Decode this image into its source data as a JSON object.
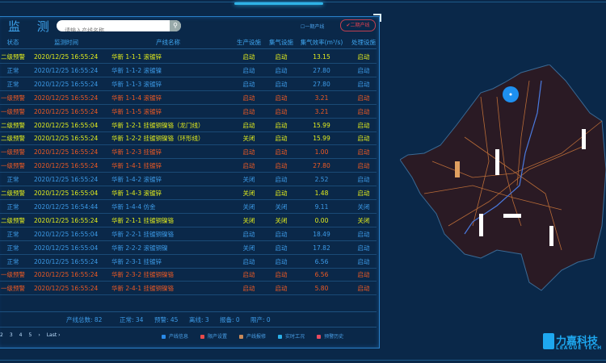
{
  "panel": {
    "title": "监 测",
    "search_placeholder": "请输入产线名称",
    "filter_phase1": "一期产线",
    "filter_phase2": "二期产线"
  },
  "table": {
    "headers": [
      "状态",
      "监测时间",
      "产线名称",
      "生产设施",
      "集气设施",
      "集气效率(m³/s)",
      "处理设施"
    ],
    "rows": [
      {
        "level": "y",
        "cells": [
          "二级预警",
          "2020/12/25 16:55:24",
          "华新 1-1-1 滚镀锌",
          "启动",
          "启动",
          "13.15",
          "启动"
        ]
      },
      {
        "level": "n",
        "cells": [
          "正常",
          "2020/12/25 16:55:24",
          "华新 1-1-2 滚镀镍",
          "启动",
          "启动",
          "27.80",
          "启动"
        ]
      },
      {
        "level": "n",
        "cells": [
          "正常",
          "2020/12/25 16:55:24",
          "华新 1-1-3 滚镀锌",
          "启动",
          "启动",
          "27.80",
          "启动"
        ]
      },
      {
        "level": "o",
        "cells": [
          "一级预警",
          "2020/12/25 16:55:24",
          "华新 1-1-4 滚镀锌",
          "启动",
          "启动",
          "3.21",
          "启动"
        ]
      },
      {
        "level": "o",
        "cells": [
          "一级预警",
          "2020/12/25 16:55:24",
          "华新 1-1-5 滚镀锌",
          "启动",
          "启动",
          "3.21",
          "启动"
        ]
      },
      {
        "level": "y",
        "cells": [
          "二级预警",
          "2020/12/25 16:55:04",
          "华新 1-2-1 挂镀铜镍铬（龙门线）",
          "启动",
          "启动",
          "15.99",
          "启动"
        ]
      },
      {
        "level": "y",
        "cells": [
          "二级预警",
          "2020/12/25 16:55:24",
          "华新 1-2-2 挂镀铜镍铬（环形线）",
          "关闭",
          "启动",
          "15.99",
          "启动"
        ]
      },
      {
        "level": "o",
        "cells": [
          "一级预警",
          "2020/12/25 16:55:24",
          "华新 1-2-3 挂镀锌",
          "启动",
          "启动",
          "1.00",
          "启动"
        ]
      },
      {
        "level": "o",
        "cells": [
          "一级预警",
          "2020/12/25 16:55:24",
          "华新 1-4-1 挂镀锌",
          "启动",
          "启动",
          "27.80",
          "启动"
        ]
      },
      {
        "level": "n",
        "cells": [
          "正常",
          "2020/12/25 16:55:24",
          "华新 1-4-2 滚镀锌",
          "关闭",
          "启动",
          "2.52",
          "启动"
        ]
      },
      {
        "level": "y",
        "cells": [
          "二级预警",
          "2020/12/25 16:55:04",
          "华新 1-4-3 滚镀锌",
          "关闭",
          "启动",
          "1.48",
          "启动"
        ]
      },
      {
        "level": "n",
        "cells": [
          "正常",
          "2020/12/25 16:54:44",
          "华新 1-4-4 仿金",
          "关闭",
          "关闭",
          "9.11",
          "关闭"
        ]
      },
      {
        "level": "y",
        "cells": [
          "二级预警",
          "2020/12/25 16:55:24",
          "华新 2-1-1 挂镀铜镍铬",
          "关闭",
          "关闭",
          "0.00",
          "关闭"
        ]
      },
      {
        "level": "n",
        "cells": [
          "正常",
          "2020/12/25 16:55:04",
          "华新 2-2-1 挂镀铜镍铬",
          "启动",
          "启动",
          "18.49",
          "启动"
        ]
      },
      {
        "level": "n",
        "cells": [
          "正常",
          "2020/12/25 16:55:04",
          "华新 2-2-2 滚镀铜镍",
          "关闭",
          "启动",
          "17.82",
          "启动"
        ]
      },
      {
        "level": "n",
        "cells": [
          "正常",
          "2020/12/25 16:55:24",
          "华新 2-3-1 挂镀锌",
          "启动",
          "启动",
          "6.56",
          "启动"
        ]
      },
      {
        "level": "o",
        "cells": [
          "一级预警",
          "2020/12/25 16:55:24",
          "华新 2-3-2 挂镀铜镍铬",
          "启动",
          "启动",
          "6.56",
          "启动"
        ]
      },
      {
        "level": "o",
        "cells": [
          "一级预警",
          "2020/12/25 16:55:24",
          "华新 2-4-1 挂镀铜镍铬",
          "启动",
          "启动",
          "5.80",
          "启动"
        ]
      }
    ]
  },
  "stats": [
    "产线总数: 82",
    "正常: 34",
    "预警: 45",
    "离线: 3",
    "报备: 0",
    "限产: 0"
  ],
  "pagination": [
    "2",
    "3",
    "4",
    "5",
    "›",
    "Last ›"
  ],
  "legend": [
    {
      "label": "产线信息",
      "color": "#2a8ae8"
    },
    {
      "label": "限产设置",
      "color": "#e84a4a"
    },
    {
      "label": "产线报修",
      "color": "#c98a5a"
    },
    {
      "label": "实时工况",
      "color": "#2ab0e8"
    },
    {
      "label": "预警历史",
      "color": "#e84a60"
    }
  ],
  "colors": {
    "warning_level2": "#e5ef1c",
    "warning_level1": "#f05a22",
    "normal": "#3d9be8",
    "background": "#0a2849"
  },
  "logo": {
    "cn": "力嘉科技",
    "en": "LEAGUE TECH"
  }
}
